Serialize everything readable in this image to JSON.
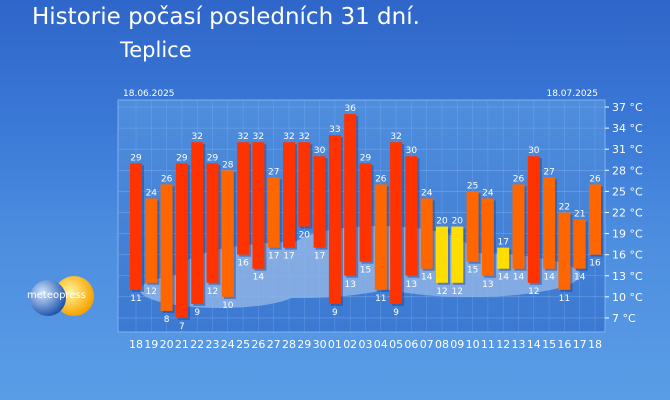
{
  "header": {
    "title": "Historie počasí posledních 31 dní.",
    "location": "Teplice"
  },
  "logo": {
    "name": "meteopress"
  },
  "colors": {
    "hot": "#ff3300",
    "warm": "#ff6600",
    "mild": "#ffdd00",
    "text": "#ffffff"
  },
  "chart_data": {
    "type": "bar",
    "subtype": "floating-range",
    "title": "Historie počasí posledních 31 dní.",
    "subtitle": "Teplice",
    "start_label": "18.06.2025",
    "end_label": "18.07.2025",
    "categories": [
      "18",
      "19",
      "20",
      "21",
      "22",
      "23",
      "24",
      "25",
      "26",
      "27",
      "28",
      "29",
      "30",
      "01",
      "02",
      "03",
      "04",
      "05",
      "06",
      "07",
      "08",
      "09",
      "10",
      "11",
      "12",
      "13",
      "14",
      "15",
      "16",
      "17",
      "18"
    ],
    "series": [
      {
        "values": [
          29,
          24,
          26,
          29,
          32,
          29,
          28,
          32,
          32,
          27,
          32,
          32,
          30,
          33,
          36,
          29,
          26,
          32,
          30,
          24,
          20,
          20,
          25,
          24,
          17,
          26,
          30,
          27,
          22,
          21,
          26
        ]
      },
      {
        "values": [
          11,
          12,
          8,
          7,
          9,
          12,
          10,
          16,
          14,
          17,
          17,
          20,
          17,
          9,
          13,
          15,
          11,
          9,
          13,
          14,
          12,
          12,
          15,
          13,
          14,
          14,
          12,
          14,
          11,
          14,
          16
        ]
      }
    ],
    "y_ticks": [
      "37 °C",
      "34 °C",
      "31 °C",
      "28 °C",
      "25 °C",
      "22 °C",
      "19 °C",
      "16 °C",
      "13 °C",
      "10 °C",
      "7 °C"
    ],
    "ylim": [
      5,
      38
    ],
    "grid": true,
    "legend": "none"
  }
}
